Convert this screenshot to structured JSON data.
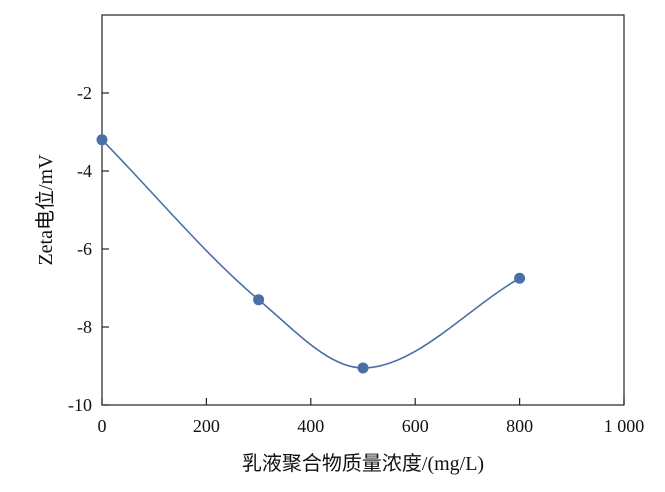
{
  "chart_data": {
    "type": "line",
    "title": "",
    "xlabel": "乳液聚合物质量浓度/(mg/L)",
    "ylabel": "Zeta电位/mV",
    "xlim": [
      0,
      1000
    ],
    "ylim": [
      -10,
      0
    ],
    "xticks": [
      0,
      200,
      400,
      600,
      800,
      1000
    ],
    "xtick_labels": [
      "0",
      "200",
      "400",
      "600",
      "800",
      "1 000"
    ],
    "yticks": [
      -10,
      -8,
      -6,
      -4,
      -2
    ],
    "ytick_labels": [
      "-10",
      "-8",
      "-6",
      "-4",
      "-2"
    ],
    "grid": false,
    "legend": "none",
    "series": [
      {
        "x": [
          0,
          300,
          500,
          800
        ],
        "y": [
          -3.2,
          -7.3,
          -9.05,
          -6.75
        ],
        "color": "#4a6fa5",
        "smooth": true,
        "markers": true
      }
    ]
  }
}
